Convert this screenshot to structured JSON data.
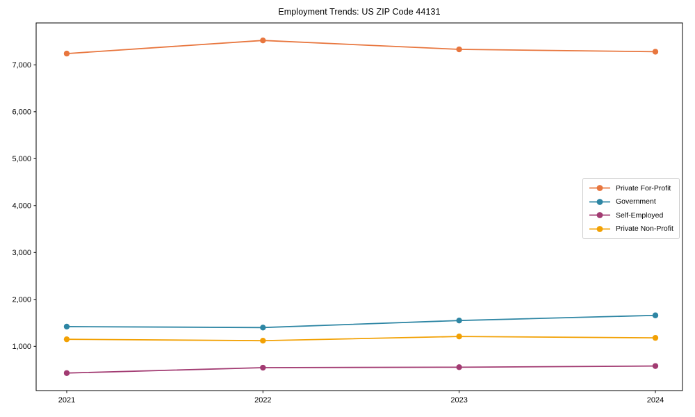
{
  "window": {
    "background": "#ffffff"
  },
  "chart_data": {
    "type": "line",
    "title": "Employment Trends: US ZIP Code 44131",
    "x": [
      2021,
      2022,
      2023,
      2024
    ],
    "x_tick_labels": [
      "2021",
      "2022",
      "2023",
      "2024"
    ],
    "y_ticks": [
      1000,
      2000,
      3000,
      4000,
      5000,
      6000,
      7000
    ],
    "y_tick_labels": [
      "1,000",
      "2,000",
      "3,000",
      "4,000",
      "5,000",
      "6,000",
      "7,000"
    ],
    "ylim": [
      50,
      7900
    ],
    "grid": false,
    "marker": "circle",
    "legend_position": "center-right",
    "legend_border_color": "#cccccc",
    "axis_color": "#000000",
    "series": [
      {
        "name": "Private For-Profit",
        "color": "#E8763E",
        "values": [
          7240,
          7520,
          7330,
          7280
        ]
      },
      {
        "name": "Government",
        "color": "#2E86A4",
        "values": [
          1420,
          1400,
          1550,
          1660
        ]
      },
      {
        "name": "Self-Employed",
        "color": "#A23B72",
        "values": [
          430,
          545,
          555,
          580
        ]
      },
      {
        "name": "Private Non-Profit",
        "color": "#F2A104",
        "values": [
          1150,
          1120,
          1210,
          1180
        ]
      }
    ]
  }
}
